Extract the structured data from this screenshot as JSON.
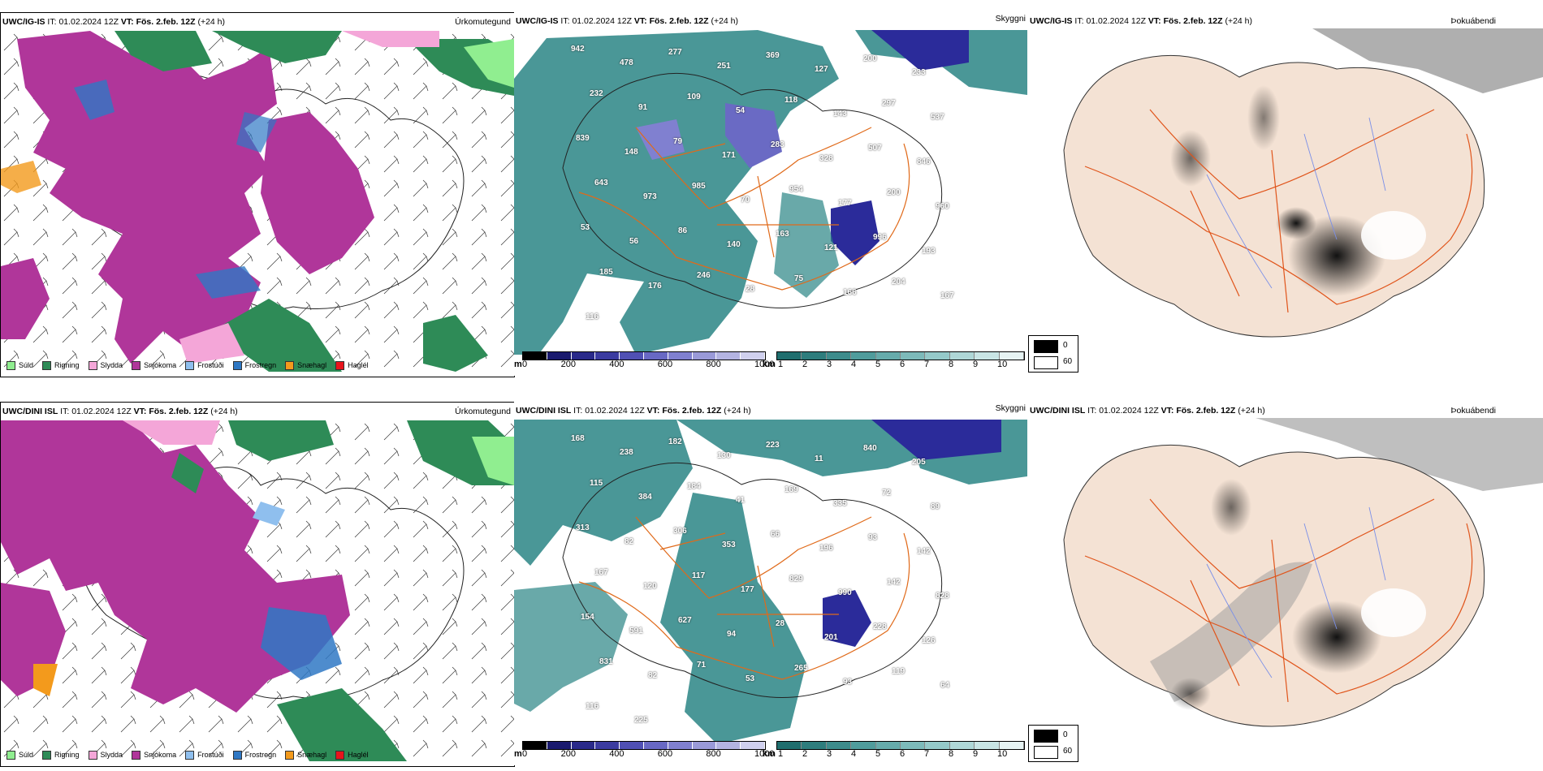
{
  "rows": [
    {
      "model": "UWC/IG-IS",
      "it_label": "IT:",
      "it": "01.02.2024 12Z",
      "vt_label": "VT:",
      "vt": "Fös. 2.feb. 12Z",
      "lead": "(+24 h)",
      "precip_title": "Úrkomutegund",
      "vis_title": "Skyggni",
      "fog_title": "Þokuábendi",
      "vis_labels": [
        "942",
        "478",
        "277",
        "251",
        "369",
        "127",
        "200",
        "233",
        "232",
        "91",
        "109",
        "54",
        "118",
        "143",
        "297",
        "537",
        "839",
        "148",
        "79",
        "171",
        "283",
        "328",
        "507",
        "846",
        "643",
        "973",
        "985",
        "70",
        "954",
        "177",
        "200",
        "960",
        "53",
        "56",
        "86",
        "140",
        "163",
        "121",
        "996",
        "193",
        "185",
        "176",
        "246",
        "28",
        "75",
        "166",
        "204",
        "167",
        "116"
      ]
    },
    {
      "model": "UWC/DINI ISL",
      "it_label": "IT:",
      "it": "01.02.2024 12Z",
      "vt_label": "VT:",
      "vt": "Fös. 2.feb. 12Z",
      "lead": "(+24 h)",
      "precip_title": "Úrkomutegund",
      "vis_title": "Skyggni",
      "fog_title": "Þokuábendi",
      "vis_labels": [
        "168",
        "238",
        "182",
        "130",
        "223",
        "11",
        "840",
        "205",
        "115",
        "384",
        "184",
        "41",
        "169",
        "335",
        "72",
        "89",
        "313",
        "82",
        "306",
        "353",
        "66",
        "196",
        "93",
        "142",
        "167",
        "120",
        "117",
        "177",
        "829",
        "990",
        "142",
        "828",
        "154",
        "591",
        "627",
        "94",
        "28",
        "201",
        "228",
        "126",
        "831",
        "82",
        "71",
        "53",
        "265",
        "93",
        "119",
        "64",
        "116",
        "225"
      ]
    }
  ],
  "precip_legend": [
    {
      "label": "Súld",
      "color": "#90ee90"
    },
    {
      "label": "Rigning",
      "color": "#2e8b57"
    },
    {
      "label": "Slydda",
      "color": "#f4a6d8"
    },
    {
      "label": "Snjókoma",
      "color": "#b0369a"
    },
    {
      "label": "Frostúði",
      "color": "#8fbfee"
    },
    {
      "label": "Frostregn",
      "color": "#2f78c4"
    },
    {
      "label": "Snæhagl",
      "color": "#f39a1c"
    },
    {
      "label": "Haglél",
      "color": "#e8141c"
    }
  ],
  "vis_colorbar": {
    "m_unit": "m",
    "m_ticks": [
      "0",
      "200",
      "400",
      "600",
      "800",
      "1000"
    ],
    "km_unit": "km",
    "km_ticks": [
      "1",
      "2",
      "3",
      "4",
      "5",
      "6",
      "7",
      "8",
      "9",
      "10"
    ],
    "m_colors": [
      "#000000",
      "#1a1a6e",
      "#2a2a8a",
      "#3b3ba0",
      "#5050b4",
      "#6868c4",
      "#8080d0",
      "#9a9ad8",
      "#b4b4e2",
      "#d0d0ee"
    ],
    "km_colors": [
      "#1f6e6e",
      "#2e7d7d",
      "#3d8c8c",
      "#509c9c",
      "#66abab",
      "#7dbaba",
      "#95c9c9",
      "#afd7d7",
      "#c9e5e5",
      "#e6f3f3"
    ]
  },
  "fog_legend": {
    "dark_label": "0",
    "light_label": "60"
  },
  "colors": {
    "snow": "#b0369a",
    "rain": "#2e8b57",
    "drizzle": "#90ee90",
    "sleet": "#f4a6d8",
    "freezing_rain": "#2f78c4",
    "snow_pellets": "#f39a1c",
    "vis_teal": "#2a8585",
    "vis_blue": "#2b2b9a",
    "roads": "#e06a1a",
    "rivers": "#7a8fe8",
    "land_fog": "#f4e2d4"
  }
}
